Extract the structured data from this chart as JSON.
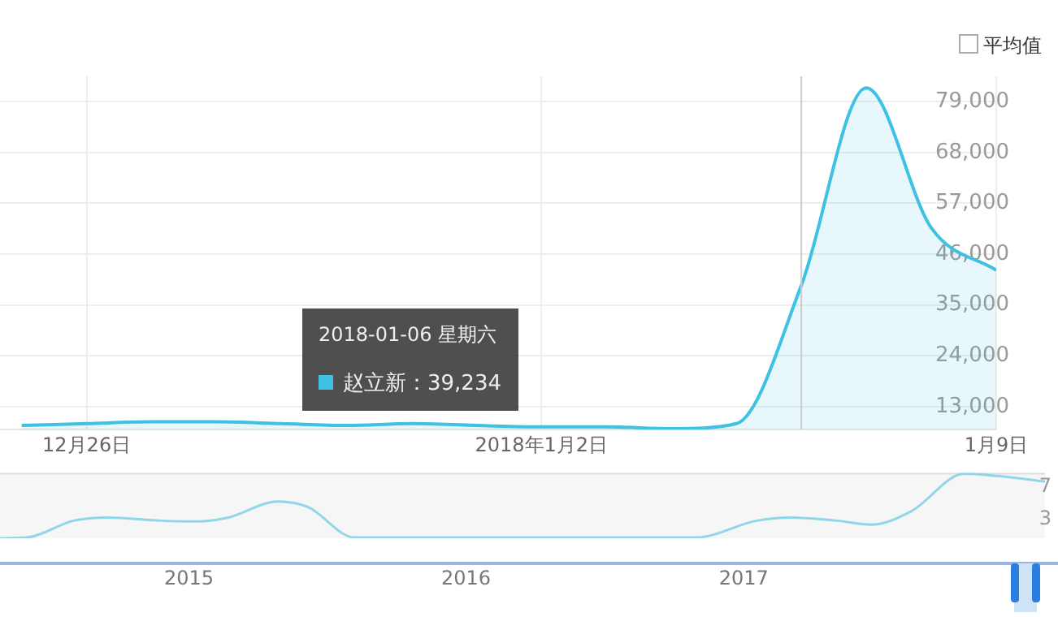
{
  "chart_data": [
    {
      "type": "area",
      "annotations": [
        "平均值",
        "2018-01-06 星期六",
        "赵立新：39,234"
      ],
      "x": [
        "2017-12-25",
        "2017-12-26",
        "2017-12-27",
        "2017-12-28",
        "2017-12-29",
        "2017-12-30",
        "2017-12-31",
        "2018-01-01",
        "2018-01-02",
        "2018-01-03",
        "2018-01-04",
        "2018-01-05",
        "2018-01-06",
        "2018-01-07",
        "2018-01-08",
        "2018-01-09"
      ],
      "series": [
        {
          "color": "#3ec1e3",
          "values": [
            8900,
            9300,
            9700,
            9700,
            9300,
            8900,
            9300,
            8900,
            8600,
            8600,
            8200,
            9300,
            39234,
            82000,
            51700,
            42500
          ]
        }
      ],
      "xlim": [
        "2017-12-24T16:00",
        "2018-01-09"
      ],
      "xticks": [
        {
          "value": "2017-12-26",
          "label": "12月26日"
        },
        {
          "value": "2018-01-02",
          "label": "2018年1月2日"
        },
        {
          "value": "2018-01-09",
          "label": "1月9日"
        }
      ],
      "ylim": [
        8000,
        84500
      ],
      "yticks": [
        {
          "value": 13000,
          "label": "13,000"
        },
        {
          "value": 24000,
          "label": "24,000"
        },
        {
          "value": 35000,
          "label": "35,000"
        },
        {
          "value": 46000,
          "label": "46,000"
        },
        {
          "value": 57000,
          "label": "57,000"
        },
        {
          "value": 68000,
          "label": "68,000"
        },
        {
          "value": 79000,
          "label": "79,000"
        }
      ],
      "ref_lines": [
        {
          "axis": "x",
          "value": "2018-01-06",
          "color": "#cccccc"
        }
      ],
      "grid": true,
      "legend": false,
      "marker": "none"
    },
    {
      "type": "line",
      "x": [
        "2014-04-27",
        "2014-06-02",
        "2014-08-02",
        "2014-09-16",
        "2014-11-25",
        "2015-01-08",
        "2015-02-22",
        "2015-04-28",
        "2015-06-07",
        "2015-08-07",
        "2016-10-30",
        "2017-01-18",
        "2017-03-04",
        "2017-05-04",
        "2017-06-18",
        "2017-08-10",
        "2017-10-19",
        "2017-12-02",
        "2018-02-02"
      ],
      "series": [
        {
          "color": "#8fd6ea",
          "values": [
            0.6,
            0.7,
            2.8,
            3.2,
            2.8,
            2.7,
            3.2,
            5.2,
            4.5,
            0.7,
            0.7,
            2.8,
            3.2,
            2.8,
            2.3,
            4.0,
            8.7,
            8.4,
            7.7
          ]
        }
      ],
      "xlim": [
        "2014-04-27",
        "2018-02-02"
      ],
      "xticks": [
        {
          "value": "2015-01-01",
          "label": "2015"
        },
        {
          "value": "2016-01-01",
          "label": "2016"
        },
        {
          "value": "2017-01-01",
          "label": "2017"
        }
      ],
      "ylim": [
        0.6,
        8.8
      ],
      "yticks": [
        3,
        7
      ],
      "grid": false,
      "legend": false,
      "marker": "none"
    }
  ]
}
